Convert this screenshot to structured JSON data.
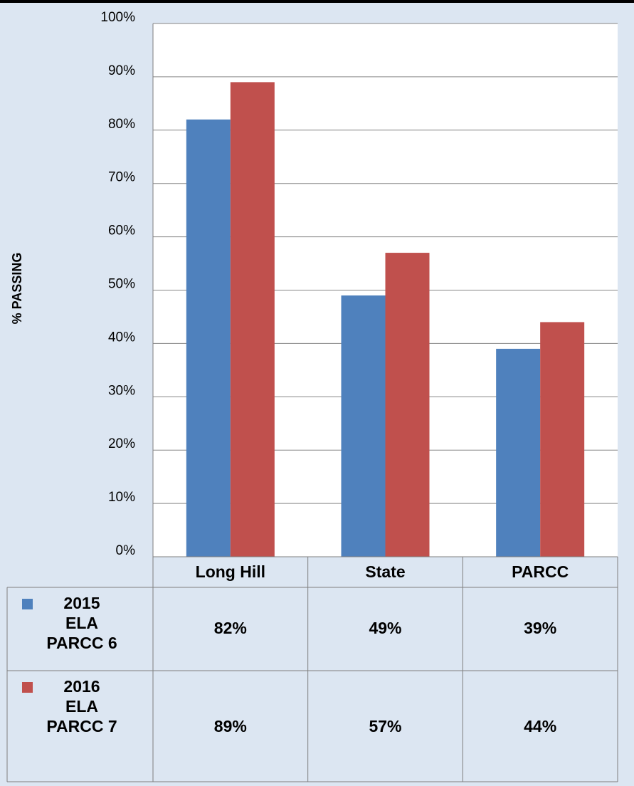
{
  "chart_data": {
    "type": "bar",
    "y_label": "% PASSING",
    "categories": [
      "Long Hill",
      "State",
      "PARCC"
    ],
    "series": [
      {
        "name": "2015\nELA\nPARCC 6",
        "color": "#4f81bd",
        "values": [
          82,
          49,
          39
        ],
        "value_labels": [
          "82%",
          "49%",
          "39%"
        ]
      },
      {
        "name": "2016\nELA\nPARCC 7",
        "color": "#c0504d",
        "values": [
          89,
          57,
          44
        ],
        "value_labels": [
          "89%",
          "57%",
          "44%"
        ]
      }
    ],
    "ylim": [
      0,
      100
    ],
    "yticks": [
      {
        "value": 0,
        "label": "0%"
      },
      {
        "value": 10,
        "label": "10%"
      },
      {
        "value": 20,
        "label": "20%"
      },
      {
        "value": 30,
        "label": "30%"
      },
      {
        "value": 40,
        "label": "40%"
      },
      {
        "value": 50,
        "label": "50%"
      },
      {
        "value": 60,
        "label": "60%"
      },
      {
        "value": 70,
        "label": "70%"
      },
      {
        "value": 80,
        "label": "80%"
      },
      {
        "value": 90,
        "label": "90%"
      },
      {
        "value": 100,
        "label": "100%"
      }
    ],
    "grid": true
  }
}
